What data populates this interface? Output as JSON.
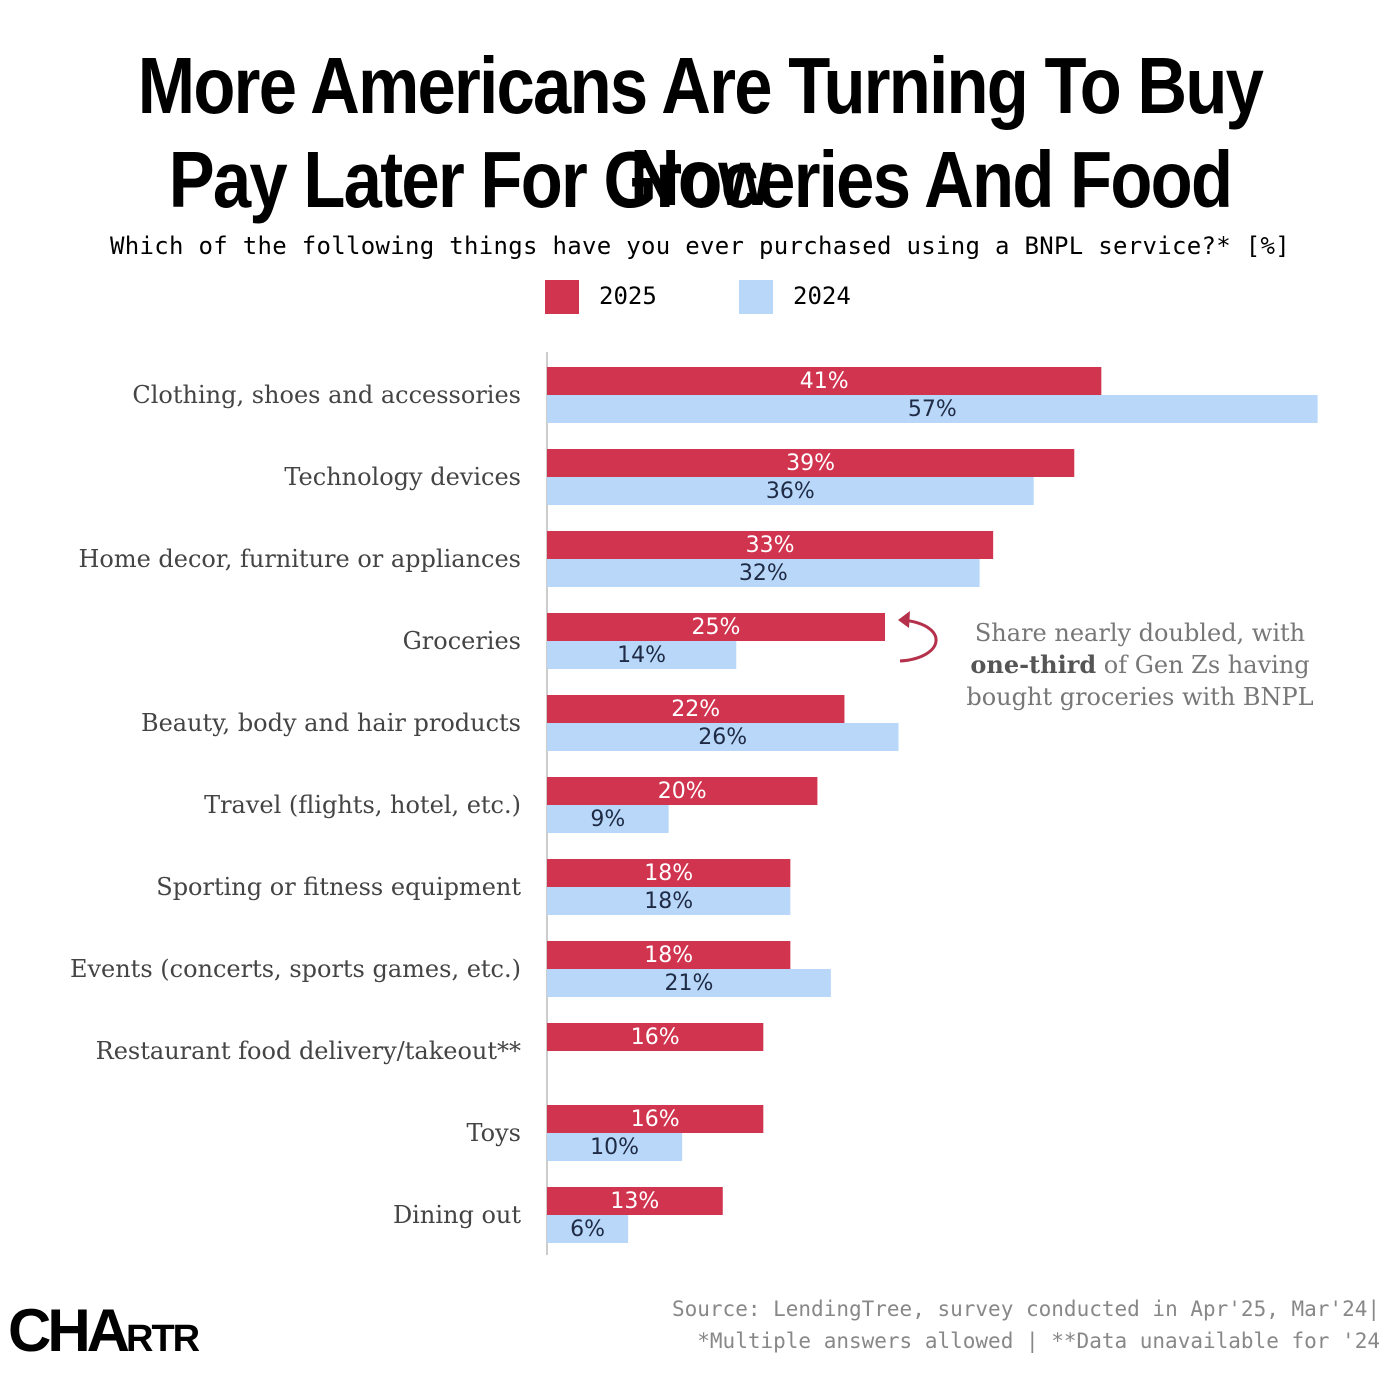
{
  "header": {
    "title_line1": "More Americans Are Turning To Buy Now",
    "title_line2": "Pay Later For Groceries And Food",
    "subtitle": "Which of the following things have you ever purchased using a BNPL service?* [%]"
  },
  "colors": {
    "series_2025": "#d1344f",
    "series_2024": "#b9d8f9",
    "label_2025": "#ffffff",
    "label_2024": "#1f2a44"
  },
  "chart_data": {
    "type": "bar",
    "orientation": "horizontal",
    "categories": [
      "Clothing, shoes and accessories",
      "Technology devices",
      "Home decor, furniture or appliances",
      "Groceries",
      "Beauty, body and hair products",
      "Travel (flights, hotel, etc.)",
      "Sporting or fitness equipment",
      "Events (concerts, sports games, etc.)",
      "Restaurant food delivery/takeout**",
      "Toys",
      "Dining out"
    ],
    "series": [
      {
        "name": "2025",
        "values": [
          41,
          39,
          33,
          25,
          22,
          20,
          18,
          18,
          16,
          16,
          13
        ],
        "labels": [
          "41%",
          "39%",
          "33%",
          "25%",
          "22%",
          "20%",
          "18%",
          "18%",
          "16%",
          "16%",
          "13%"
        ]
      },
      {
        "name": "2024",
        "values": [
          57,
          36,
          32,
          14,
          26,
          9,
          18,
          21,
          null,
          10,
          6
        ],
        "labels": [
          "57%",
          "36%",
          "32%",
          "14%",
          "26%",
          "9%",
          "18%",
          "21%",
          null,
          "10%",
          "6%"
        ]
      }
    ],
    "legend_position": "top-center",
    "grid": false
  },
  "annotation": {
    "line1": "Share nearly doubled, with",
    "line2_bold": "one-third",
    "line2_rest": " of Gen Zs having",
    "line3": "bought groceries with BNPL"
  },
  "footer": {
    "source_line1": "Source: LendingTree, survey conducted in Apr'25, Mar'24|",
    "source_line2": "*Multiple answers allowed | **Data unavailable for '24",
    "logo_big": "CHA",
    "logo_small": "RTR"
  }
}
